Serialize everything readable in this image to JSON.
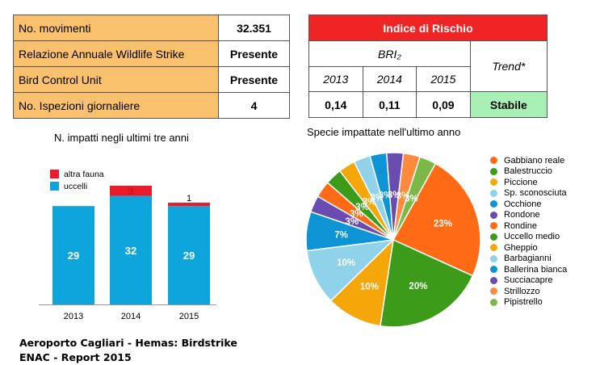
{
  "info_table": {
    "rows": [
      {
        "label": "No. movimenti",
        "value": "32.351"
      },
      {
        "label": "Relazione Annuale Wildlife Strike",
        "value": "Presente"
      },
      {
        "label": "Bird Control Unit",
        "value": "Presente"
      },
      {
        "label": "No. Ispezioni giornaliere",
        "value": "4"
      }
    ]
  },
  "risk_table": {
    "title": "Indice di Rischio",
    "bri_label": "BRI₂",
    "trend_label": "Trend*",
    "years": [
      "2013",
      "2014",
      "2015"
    ],
    "values": [
      "0,14",
      "0,11",
      "0,09"
    ],
    "trend_value": "Stabile",
    "colors": {
      "header": "#f02424",
      "trend_ok": "#a8f0b4"
    }
  },
  "chart_data": [
    {
      "type": "bar",
      "title": "N. impatti negli ultimi tre anni",
      "categories": [
        "2013",
        "2014",
        "2015"
      ],
      "series": [
        {
          "name": "uccelli",
          "values": [
            29,
            32,
            29
          ],
          "color": "#0ea5dc"
        },
        {
          "name": "altra fauna",
          "values": [
            0,
            3,
            1
          ],
          "color": "#ea1c2c"
        }
      ],
      "value_labels": {
        "uccelli": [
          "29",
          "32",
          "29"
        ],
        "altra fauna": [
          "",
          "3",
          "1"
        ]
      },
      "stacked": true,
      "legend": "top-left",
      "ylim": [
        0,
        35
      ]
    },
    {
      "type": "pie",
      "title": "Specie impattate nell'ultimo anno",
      "legend": "right",
      "slices": [
        {
          "label": "Gabbiano reale",
          "value": 23,
          "text": "23%",
          "color": "#ff6a14"
        },
        {
          "label": "Balestruccio",
          "value": 20,
          "text": "20%",
          "color": "#3c9c1a"
        },
        {
          "label": "Piccione",
          "value": 10,
          "text": "10%",
          "color": "#f5a70a"
        },
        {
          "label": "Sp. sconosciuta",
          "value": 10,
          "text": "10%",
          "color": "#8fd2ea"
        },
        {
          "label": "Occhione",
          "value": 7,
          "text": "7%",
          "color": "#0c94d4"
        },
        {
          "label": "Rondone",
          "value": 3,
          "text": "3%",
          "color": "#6a4cb0"
        },
        {
          "label": "Rondine",
          "value": 3,
          "text": "3%",
          "color": "#ff6a14"
        },
        {
          "label": "Uccello medio",
          "value": 3,
          "text": "3%",
          "color": "#3c9c1a"
        },
        {
          "label": "Gheppio",
          "value": 3,
          "text": "3%",
          "color": "#f5a70a"
        },
        {
          "label": "Barbagianni",
          "value": 3,
          "text": "3%",
          "color": "#8fd2ea"
        },
        {
          "label": "Ballerina bianca",
          "value": 3,
          "text": "3%",
          "color": "#0c94d4"
        },
        {
          "label": "Succiacapre",
          "value": 3,
          "text": "3%",
          "color": "#6a4cb0"
        },
        {
          "label": "Strillozzo",
          "value": 3,
          "text": "3%",
          "color": "#ff8a3c"
        },
        {
          "label": "Pipistrello",
          "value": 3,
          "text": "3%",
          "color": "#7cb848"
        }
      ]
    }
  ],
  "caption": {
    "line1": "Aeroporto Cagliari - Hemas:  Birdstrike",
    "line2": "ENAC - Report 2015"
  }
}
